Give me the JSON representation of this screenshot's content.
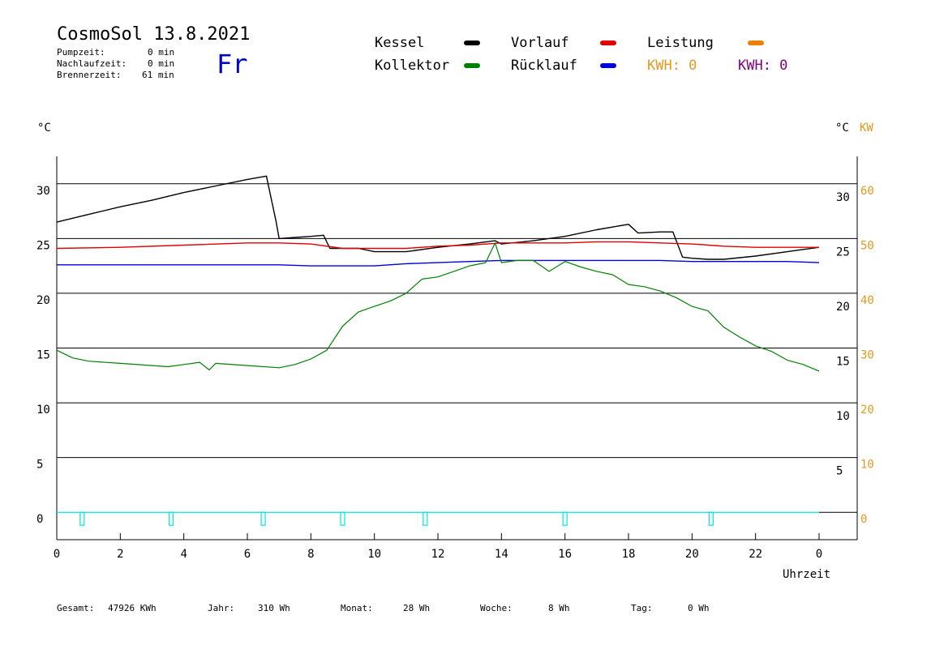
{
  "header": {
    "title": "CosmoSol 13.8.2021",
    "day": "Fr",
    "pump_label": "Pumpzeit:",
    "pump_value": "0 min",
    "nachlauf_label": "Nachlaufzeit:",
    "nachlauf_value": "0 min",
    "brenner_label": "Brennerzeit:",
    "brenner_value": "61 min"
  },
  "legend": {
    "kessel": "Kessel",
    "kollektor": "Kollektor",
    "vorlauf": "Vorlauf",
    "ruecklauf": "Rücklauf",
    "leistung": "Leistung",
    "kwh_orange": "KWH: 0",
    "kwh_purple": "KWH: 0"
  },
  "colors": {
    "kessel": "#000000",
    "kollektor": "#008000",
    "vorlauf": "#e00000",
    "ruecklauf": "#0000dd",
    "leistung": "#f08000",
    "kwh_purple": "#800080",
    "pump": "#00e5e5",
    "orange_axis": "#e09a20"
  },
  "footer": {
    "gesamt_label": "Gesamt:",
    "gesamt_value": "47926 KWh",
    "jahr_label": "Jahr:",
    "jahr_value": "310 Wh",
    "monat_label": "Monat:",
    "monat_value": "28 Wh",
    "woche_label": "Woche:",
    "woche_value": "8 Wh",
    "tag_label": "Tag:",
    "tag_value": "0 Wh"
  },
  "chart_data": {
    "type": "line",
    "xlabel": "Uhrzeit",
    "ylabel_left": "°C",
    "ylabel_right": "°C",
    "ylabel_right2": "KW",
    "x_ticks": [
      "0",
      "2",
      "4",
      "6",
      "8",
      "10",
      "12",
      "14",
      "16",
      "18",
      "20",
      "22",
      "0"
    ],
    "y_ticks_left": [
      "0",
      "5",
      "10",
      "15",
      "20",
      "25",
      "30"
    ],
    "y_ticks_right": [
      "5",
      "10",
      "15",
      "20",
      "25",
      "30"
    ],
    "y_ticks_kw": [
      "0",
      "10",
      "20",
      "30",
      "40",
      "50",
      "60"
    ],
    "xlim": [
      0,
      24
    ],
    "ylim": [
      -2.5,
      32.5
    ],
    "grid": true,
    "series": [
      {
        "name": "Kessel",
        "color": "#000000",
        "points": [
          [
            0,
            26.5
          ],
          [
            1,
            27.2
          ],
          [
            2,
            27.9
          ],
          [
            3,
            28.5
          ],
          [
            4,
            29.2
          ],
          [
            5,
            29.8
          ],
          [
            6,
            30.4
          ],
          [
            6.6,
            30.7
          ],
          [
            6.9,
            26.6
          ],
          [
            7.0,
            25.0
          ],
          [
            7.5,
            25.1
          ],
          [
            8.0,
            25.2
          ],
          [
            8.4,
            25.3
          ],
          [
            8.6,
            24.1
          ],
          [
            9.5,
            24.1
          ],
          [
            10,
            23.8
          ],
          [
            11,
            23.8
          ],
          [
            12,
            24.2
          ],
          [
            13,
            24.5
          ],
          [
            13.8,
            24.8
          ],
          [
            14,
            24.5
          ],
          [
            15,
            24.8
          ],
          [
            16,
            25.2
          ],
          [
            17,
            25.8
          ],
          [
            18,
            26.3
          ],
          [
            18.3,
            25.5
          ],
          [
            19,
            25.6
          ],
          [
            19.4,
            25.6
          ],
          [
            19.7,
            23.3
          ],
          [
            20,
            23.2
          ],
          [
            20.5,
            23.1
          ],
          [
            21,
            23.1
          ],
          [
            22,
            23.4
          ],
          [
            23,
            23.8
          ],
          [
            24,
            24.2
          ]
        ]
      },
      {
        "name": "Vorlauf",
        "color": "#e00000",
        "points": [
          [
            0,
            24.1
          ],
          [
            2,
            24.2
          ],
          [
            4,
            24.4
          ],
          [
            6,
            24.6
          ],
          [
            7,
            24.6
          ],
          [
            8,
            24.5
          ],
          [
            9,
            24.1
          ],
          [
            10,
            24.1
          ],
          [
            11,
            24.1
          ],
          [
            12,
            24.3
          ],
          [
            13,
            24.4
          ],
          [
            14,
            24.6
          ],
          [
            15,
            24.6
          ],
          [
            16,
            24.6
          ],
          [
            17,
            24.7
          ],
          [
            18,
            24.7
          ],
          [
            19,
            24.6
          ],
          [
            20,
            24.5
          ],
          [
            21,
            24.3
          ],
          [
            22,
            24.2
          ],
          [
            23,
            24.2
          ],
          [
            24,
            24.2
          ]
        ]
      },
      {
        "name": "Rücklauf",
        "color": "#0000dd",
        "points": [
          [
            0,
            22.6
          ],
          [
            2,
            22.6
          ],
          [
            4,
            22.6
          ],
          [
            6,
            22.6
          ],
          [
            7,
            22.6
          ],
          [
            8,
            22.5
          ],
          [
            9,
            22.5
          ],
          [
            10,
            22.5
          ],
          [
            11,
            22.7
          ],
          [
            12,
            22.8
          ],
          [
            13,
            22.9
          ],
          [
            14,
            23.0
          ],
          [
            15,
            23.0
          ],
          [
            16,
            23.0
          ],
          [
            17,
            23.0
          ],
          [
            18,
            23.0
          ],
          [
            19,
            23.0
          ],
          [
            20,
            22.9
          ],
          [
            21,
            22.9
          ],
          [
            22,
            22.9
          ],
          [
            23,
            22.9
          ],
          [
            24,
            22.8
          ]
        ]
      },
      {
        "name": "Kollektor",
        "color": "#008000",
        "points": [
          [
            0,
            14.8
          ],
          [
            0.5,
            14.1
          ],
          [
            1,
            13.8
          ],
          [
            2,
            13.6
          ],
          [
            3,
            13.4
          ],
          [
            3.5,
            13.3
          ],
          [
            4,
            13.5
          ],
          [
            4.5,
            13.7
          ],
          [
            4.8,
            13.0
          ],
          [
            5,
            13.6
          ],
          [
            6,
            13.4
          ],
          [
            7,
            13.2
          ],
          [
            7.5,
            13.5
          ],
          [
            8,
            14.0
          ],
          [
            8.5,
            14.8
          ],
          [
            9,
            17.0
          ],
          [
            9.5,
            18.3
          ],
          [
            10,
            18.8
          ],
          [
            10.5,
            19.3
          ],
          [
            11,
            20.0
          ],
          [
            11.5,
            21.3
          ],
          [
            12,
            21.5
          ],
          [
            12.5,
            22.0
          ],
          [
            13,
            22.5
          ],
          [
            13.5,
            22.8
          ],
          [
            13.8,
            24.6
          ],
          [
            14,
            22.8
          ],
          [
            14.5,
            23.0
          ],
          [
            15,
            23.0
          ],
          [
            15.5,
            22.0
          ],
          [
            16,
            22.9
          ],
          [
            16.5,
            22.4
          ],
          [
            17,
            22.0
          ],
          [
            17.5,
            21.7
          ],
          [
            18,
            20.8
          ],
          [
            18.5,
            20.6
          ],
          [
            19,
            20.2
          ],
          [
            19.5,
            19.6
          ],
          [
            20,
            18.8
          ],
          [
            20.5,
            18.4
          ],
          [
            21,
            16.9
          ],
          [
            21.5,
            16.0
          ],
          [
            22,
            15.2
          ],
          [
            22.5,
            14.7
          ],
          [
            23,
            13.9
          ],
          [
            23.5,
            13.5
          ],
          [
            24,
            12.9
          ]
        ]
      }
    ],
    "pump_pulses_hours": [
      0.8,
      3.6,
      6.5,
      9.0,
      11.6,
      16.0,
      20.6
    ]
  }
}
